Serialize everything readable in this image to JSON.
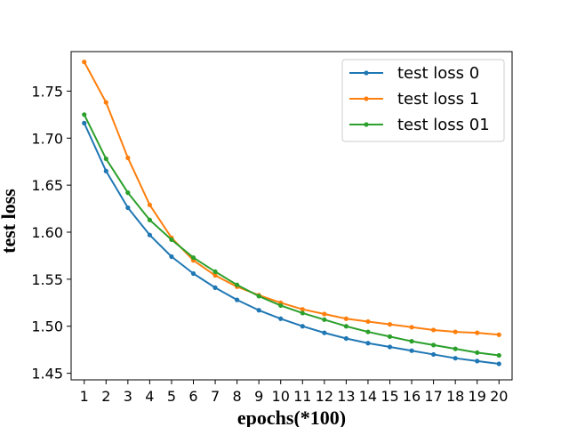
{
  "chart_data": {
    "type": "line",
    "title": "",
    "xlabel": "epochs(*100)",
    "ylabel": "test loss",
    "x": [
      1,
      2,
      3,
      4,
      5,
      6,
      7,
      8,
      9,
      10,
      11,
      12,
      13,
      14,
      15,
      16,
      17,
      18,
      19,
      20
    ],
    "xlim": [
      0.4,
      20.6
    ],
    "ylim": [
      1.443,
      1.792
    ],
    "yticks": [
      "1.45",
      "1.50",
      "1.55",
      "1.60",
      "1.65",
      "1.70",
      "1.75"
    ],
    "grid": false,
    "legend_position": "top-right",
    "series": [
      {
        "name": "test loss 0",
        "color": "#1f77b4",
        "values": [
          1.716,
          1.665,
          1.626,
          1.597,
          1.574,
          1.556,
          1.541,
          1.528,
          1.517,
          1.508,
          1.5,
          1.493,
          1.487,
          1.482,
          1.478,
          1.474,
          1.47,
          1.466,
          1.463,
          1.46
        ]
      },
      {
        "name": "test loss 1",
        "color": "#ff7f0e",
        "values": [
          1.781,
          1.738,
          1.679,
          1.629,
          1.594,
          1.57,
          1.554,
          1.542,
          1.533,
          1.525,
          1.518,
          1.513,
          1.508,
          1.505,
          1.502,
          1.499,
          1.496,
          1.494,
          1.493,
          1.491
        ]
      },
      {
        "name": "test loss 01",
        "color": "#2ca02c",
        "values": [
          1.725,
          1.678,
          1.642,
          1.613,
          1.592,
          1.573,
          1.558,
          1.544,
          1.532,
          1.522,
          1.514,
          1.507,
          1.5,
          1.494,
          1.489,
          1.484,
          1.48,
          1.476,
          1.472,
          1.469
        ]
      }
    ]
  }
}
